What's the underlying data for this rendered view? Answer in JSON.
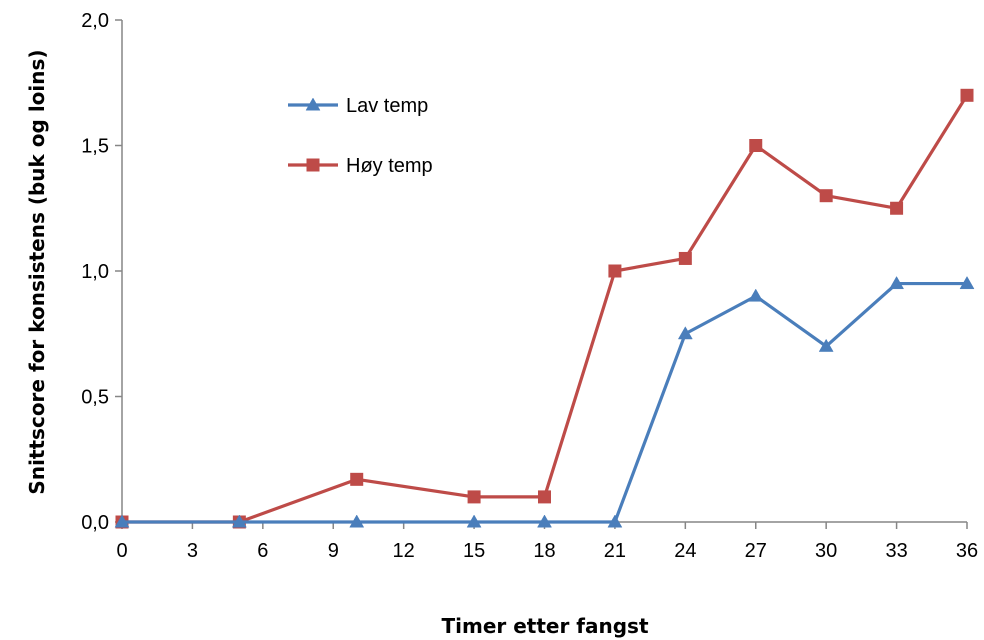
{
  "chart_data": {
    "type": "line",
    "title": "",
    "xlabel": "Timer etter fangst",
    "ylabel": "Snittscore for konsistens (buk og loins)",
    "x": [
      0,
      5,
      10,
      15,
      18,
      21,
      24,
      27,
      30,
      33,
      36
    ],
    "x_ticks": [
      "0",
      "3",
      "6",
      "9",
      "12",
      "15",
      "18",
      "21",
      "24",
      "27",
      "30",
      "33",
      "36"
    ],
    "y_ticks": [
      "0,0",
      "0,5",
      "1,0",
      "1,5",
      "2,0"
    ],
    "ylim": [
      0,
      2
    ],
    "grid": false,
    "legend_position": "top-left",
    "series": [
      {
        "name": "Lav temp",
        "color": "#4a7ebb",
        "marker": "triangle",
        "values": [
          0,
          0,
          0,
          0,
          0,
          0,
          0.75,
          0.9,
          0.7,
          0.95,
          0.95
        ]
      },
      {
        "name": "Høy temp",
        "color": "#be4b48",
        "marker": "square",
        "values": [
          0,
          0,
          0.17,
          0.1,
          0.1,
          1.0,
          1.05,
          1.5,
          1.3,
          1.25,
          1.7
        ]
      }
    ]
  }
}
